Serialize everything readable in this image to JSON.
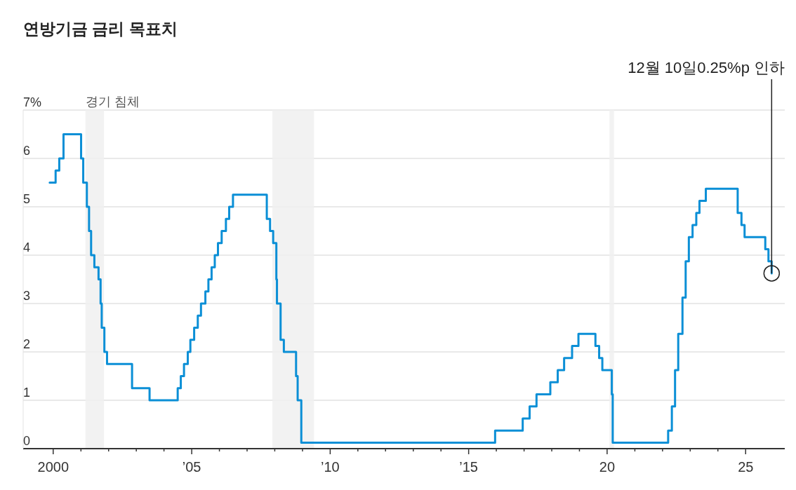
{
  "chart_data": {
    "type": "step",
    "title": "연방기금 금리 목표치",
    "x": [
      "1999-11-16",
      "2000-02-02",
      "2000-03-21",
      "2000-05-16",
      "2001-01-03",
      "2001-01-31",
      "2001-03-20",
      "2001-04-18",
      "2001-05-15",
      "2001-06-27",
      "2001-08-21",
      "2001-09-17",
      "2001-10-02",
      "2001-11-06",
      "2001-12-11",
      "2002-11-06",
      "2003-06-25",
      "2004-06-30",
      "2004-08-10",
      "2004-09-21",
      "2004-11-10",
      "2004-12-14",
      "2005-02-02",
      "2005-03-22",
      "2005-05-03",
      "2005-06-30",
      "2005-08-09",
      "2005-09-20",
      "2005-11-01",
      "2005-12-13",
      "2006-01-31",
      "2006-03-28",
      "2006-05-10",
      "2006-06-29",
      "2007-09-18",
      "2007-10-31",
      "2007-12-11",
      "2008-01-22",
      "2008-01-30",
      "2008-03-18",
      "2008-04-30",
      "2008-10-08",
      "2008-10-29",
      "2008-12-16",
      "2015-12-16",
      "2016-12-14",
      "2017-03-15",
      "2017-06-14",
      "2017-12-13",
      "2018-03-21",
      "2018-06-13",
      "2018-09-26",
      "2018-12-19",
      "2019-07-31",
      "2019-09-18",
      "2019-10-30",
      "2020-03-03",
      "2020-03-15",
      "2022-03-16",
      "2022-05-04",
      "2022-06-15",
      "2022-07-27",
      "2022-09-21",
      "2022-11-02",
      "2022-12-14",
      "2023-02-01",
      "2023-03-22",
      "2023-05-03",
      "2023-07-26",
      "2024-09-18",
      "2024-11-07",
      "2024-12-18",
      "2025-09-17",
      "2025-10-29",
      "2025-12-10"
    ],
    "series": [
      {
        "color": "#0b8fd6",
        "values": [
          5.5,
          5.75,
          6,
          6.5,
          6,
          5.5,
          5,
          4.5,
          4,
          3.75,
          3.5,
          3,
          2.5,
          2,
          1.75,
          1.25,
          1,
          1.25,
          1.5,
          1.75,
          2,
          2.25,
          2.5,
          2.75,
          3,
          3.25,
          3.5,
          3.75,
          4,
          4.25,
          4.5,
          4.75,
          5,
          5.25,
          4.75,
          4.5,
          4.25,
          3.5,
          3,
          2.25,
          2,
          1.5,
          1,
          0.125,
          0.375,
          0.625,
          0.875,
          1.125,
          1.375,
          1.625,
          1.875,
          2.125,
          2.375,
          2.125,
          1.875,
          1.625,
          1.125,
          0.125,
          0.375,
          0.875,
          1.625,
          2.375,
          3.125,
          3.875,
          4.375,
          4.625,
          4.875,
          5.125,
          5.375,
          4.875,
          4.625,
          4.375,
          4.125,
          3.875,
          3.625
        ]
      }
    ],
    "xlim": [
      "1998-12",
      "2026-06"
    ],
    "xticks": [
      {
        "value": "2000",
        "label": "2000"
      },
      {
        "value": "2001",
        "label": null
      },
      {
        "value": "2002",
        "label": null
      },
      {
        "value": "2003",
        "label": null
      },
      {
        "value": "2004",
        "label": null
      },
      {
        "value": "2005",
        "label": "’05"
      },
      {
        "value": "2006",
        "label": null
      },
      {
        "value": "2007",
        "label": null
      },
      {
        "value": "2008",
        "label": null
      },
      {
        "value": "2009",
        "label": null
      },
      {
        "value": "2010",
        "label": "’10"
      },
      {
        "value": "2011",
        "label": null
      },
      {
        "value": "2012",
        "label": null
      },
      {
        "value": "2013",
        "label": null
      },
      {
        "value": "2014",
        "label": null
      },
      {
        "value": "2015",
        "label": "’15"
      },
      {
        "value": "2016",
        "label": null
      },
      {
        "value": "2017",
        "label": null
      },
      {
        "value": "2018",
        "label": null
      },
      {
        "value": "2019",
        "label": null
      },
      {
        "value": "2020",
        "label": "20"
      },
      {
        "value": "2021",
        "label": null
      },
      {
        "value": "2022",
        "label": null
      },
      {
        "value": "2023",
        "label": null
      },
      {
        "value": "2024",
        "label": null
      },
      {
        "value": "2025",
        "label": "25"
      }
    ],
    "ylim": [
      0,
      7
    ],
    "yticks": [
      0,
      1,
      2,
      3,
      4,
      5,
      6,
      {
        "value": 7,
        "label": "7%"
      }
    ],
    "grid": "y",
    "bands": [
      {
        "axis": "x",
        "from": "2001-03",
        "to": "2001-11",
        "label": "경기 침체",
        "color": "#f0f0f0"
      },
      {
        "axis": "x",
        "from": "2007-12",
        "to": "2009-06",
        "color": "#f0f0f0"
      },
      {
        "axis": "x",
        "from": "2020-02",
        "to": "2020-04",
        "color": "#f0f0f0"
      }
    ],
    "annotations": [
      {
        "text": "12월 10일0.25%p 인하",
        "x": "2025-12-10",
        "y": 3.625
      }
    ]
  }
}
